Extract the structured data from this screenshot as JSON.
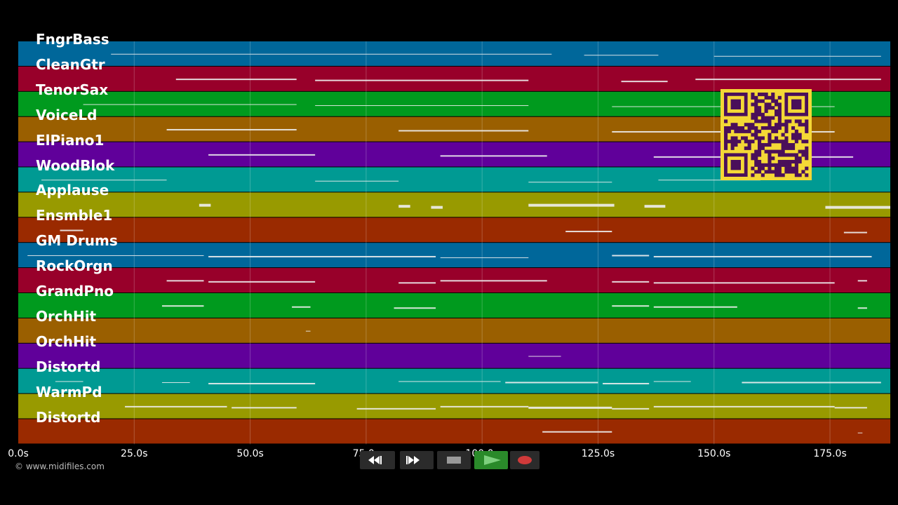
{
  "timeline": {
    "duration_s": 188,
    "tick_labels": [
      "0.0s",
      "25.0s",
      "50.0s",
      "75.0s",
      "100.0s",
      "125.0s",
      "150.0s",
      "175.0s"
    ],
    "tick_values": [
      0,
      25,
      50,
      75,
      100,
      125,
      150,
      175
    ]
  },
  "tracks": [
    {
      "name": "FngrBass",
      "color": "#00679a",
      "notes": [
        [
          20,
          115,
          1
        ],
        [
          122,
          138,
          1
        ],
        [
          150,
          186,
          1
        ]
      ]
    },
    {
      "name": "CleanGtr",
      "color": "#98002a",
      "notes": [
        [
          34,
          60,
          2
        ],
        [
          64,
          110,
          2
        ],
        [
          130,
          140,
          2
        ],
        [
          146,
          186,
          2
        ]
      ]
    },
    {
      "name": "TenorSax",
      "color": "#009a1e",
      "notes": [
        [
          14,
          60,
          1
        ],
        [
          64,
          110,
          1
        ],
        [
          128,
          176,
          1
        ]
      ]
    },
    {
      "name": "VoiceLd",
      "color": "#9a5f00",
      "notes": [
        [
          32,
          60,
          2
        ],
        [
          82,
          110,
          2
        ],
        [
          128,
          176,
          2
        ]
      ]
    },
    {
      "name": "ElPiano1",
      "color": "#60009a",
      "notes": [
        [
          41,
          64,
          2
        ],
        [
          91,
          114,
          2
        ],
        [
          137,
          180,
          2
        ]
      ]
    },
    {
      "name": "WoodBlok",
      "color": "#009a93",
      "notes": [
        [
          5,
          32,
          1
        ],
        [
          64,
          82,
          1
        ],
        [
          110,
          128,
          1
        ],
        [
          138,
          160,
          1
        ]
      ]
    },
    {
      "name": "Applause",
      "color": "#989a00",
      "notes": [
        [
          39,
          41.5,
          4
        ],
        [
          82,
          84.5,
          4
        ],
        [
          89,
          91.5,
          4
        ],
        [
          110,
          128.5,
          4
        ],
        [
          135,
          139.5,
          4
        ],
        [
          174,
          188,
          4
        ]
      ]
    },
    {
      "name": "Ensmble1",
      "color": "#9a2a00",
      "notes": [
        [
          9,
          14,
          2
        ],
        [
          118,
          128,
          2
        ],
        [
          178,
          183,
          2
        ]
      ]
    },
    {
      "name": "GM Drums",
      "color": "#00679a",
      "notes": [
        [
          2,
          40,
          1
        ],
        [
          41,
          90,
          2
        ],
        [
          91,
          110,
          1
        ],
        [
          128,
          136,
          2
        ],
        [
          137,
          184,
          2
        ]
      ]
    },
    {
      "name": "RockOrgn",
      "color": "#98002a",
      "notes": [
        [
          32,
          40,
          2
        ],
        [
          41,
          64,
          2
        ],
        [
          82,
          90,
          2
        ],
        [
          91,
          114,
          2
        ],
        [
          128,
          136,
          2
        ],
        [
          137,
          176,
          2
        ],
        [
          181,
          183,
          2
        ]
      ]
    },
    {
      "name": "GrandPno",
      "color": "#009a1e",
      "notes": [
        [
          31,
          40,
          2
        ],
        [
          59,
          63,
          2
        ],
        [
          81,
          90,
          2
        ],
        [
          128,
          136,
          2
        ],
        [
          137,
          155,
          2
        ],
        [
          181,
          183,
          2
        ]
      ]
    },
    {
      "name": "OrchHit",
      "color": "#9a5f00",
      "notes": [
        [
          62,
          63,
          1
        ]
      ]
    },
    {
      "name": "OrchHit",
      "color": "#60009a",
      "notes": [
        [
          110,
          117,
          1
        ]
      ]
    },
    {
      "name": "Distortd",
      "color": "#009a93",
      "notes": [
        [
          8,
          14,
          1
        ],
        [
          31,
          37,
          1
        ],
        [
          41,
          64,
          2
        ],
        [
          82,
          104,
          1
        ],
        [
          105,
          125,
          2
        ],
        [
          126,
          136,
          2
        ],
        [
          137,
          145,
          1
        ],
        [
          156,
          186,
          2
        ]
      ]
    },
    {
      "name": "WarmPd",
      "color": "#989a00",
      "notes": [
        [
          23,
          45,
          2
        ],
        [
          46,
          60,
          2
        ],
        [
          73,
          90,
          2
        ],
        [
          91,
          110,
          2
        ],
        [
          110,
          128,
          3
        ],
        [
          128,
          136,
          2
        ],
        [
          137,
          176,
          2
        ],
        [
          176,
          183,
          2
        ]
      ]
    },
    {
      "name": "Distortd",
      "color": "#9a2a00",
      "notes": [
        [
          113,
          128,
          2
        ],
        [
          181,
          182,
          1
        ]
      ]
    }
  ],
  "copyright": "© www.midifiles.com",
  "transport": {
    "rewind_icon": "rewind-icon",
    "fastforward_icon": "fast-forward-icon",
    "stop_icon": "stop-icon",
    "play_icon": "play-icon",
    "record_icon": "record-icon",
    "colors": {
      "button": "#2b2b2b",
      "play": "#2a8a2a",
      "record": "#d03a3a",
      "stop": "#9a9a9a"
    }
  },
  "qr_code": {
    "background": "#f4d836",
    "foreground": "#4a0f5a"
  }
}
